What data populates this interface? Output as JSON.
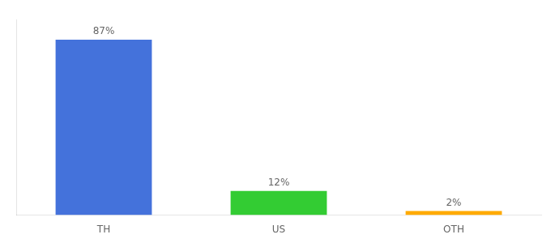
{
  "chart_data": {
    "type": "bar",
    "categories": [
      "TH",
      "US",
      "OTH"
    ],
    "values": [
      87,
      12,
      2
    ],
    "value_labels": [
      "87%",
      "12%",
      "2%"
    ],
    "colors": [
      "#4472db",
      "#33cc33",
      "#ffaa00"
    ],
    "ylim": [
      0,
      97
    ],
    "data_labels": true,
    "tick_labels": "x",
    "grid": false
  }
}
